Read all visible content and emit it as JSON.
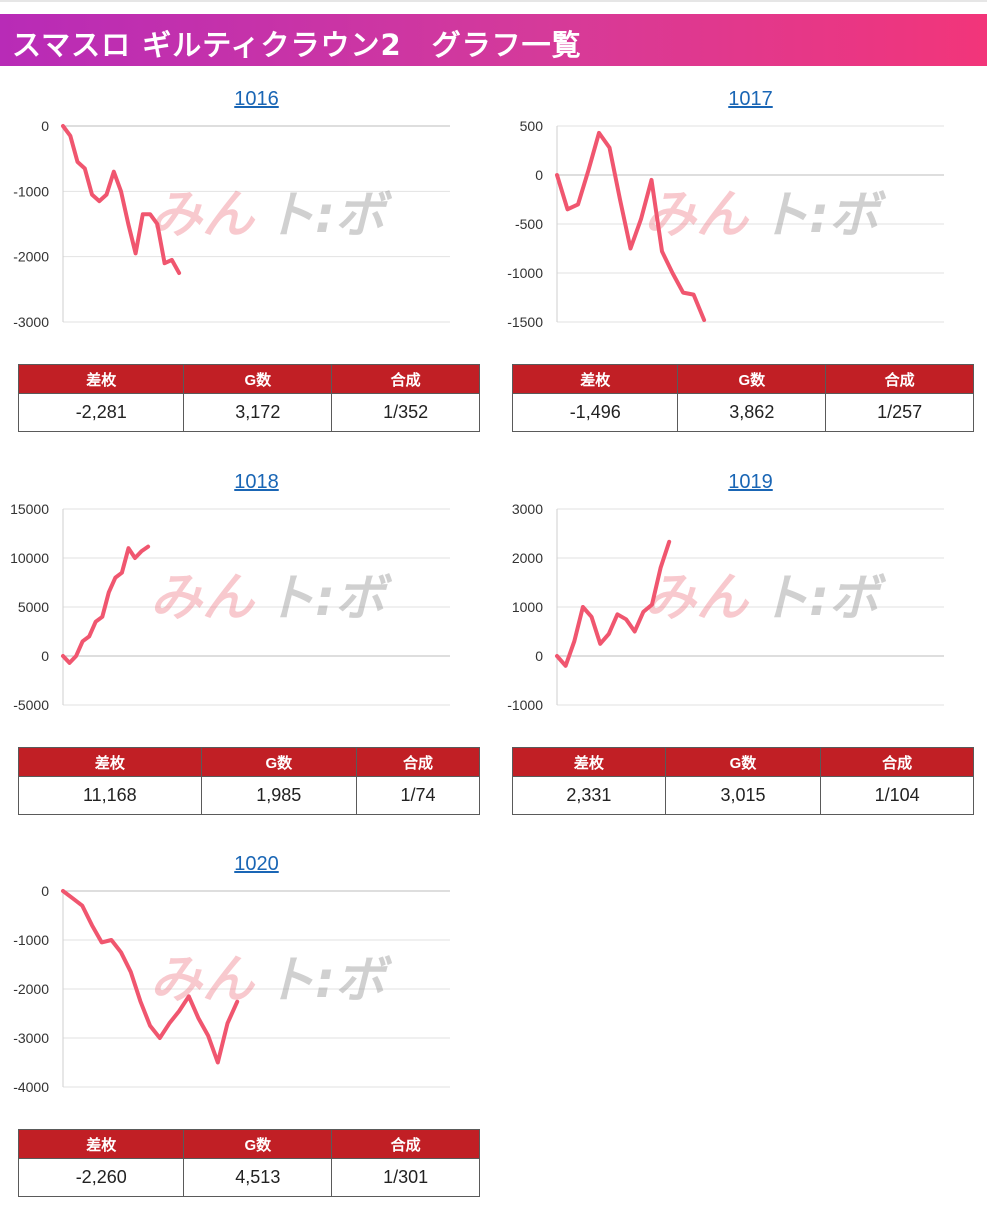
{
  "header": {
    "title": "スマスロ ギルティクラウン2　グラフ一覧"
  },
  "watermark": {
    "text_kana": "みん",
    "text_b": "ト:ボ"
  },
  "colors": {
    "line": "#f0566f",
    "header_bar": "#c11f25",
    "link": "#1a66b5"
  },
  "machines": [
    {
      "id": "1016",
      "stats": {
        "diff": "-2,281",
        "games": "3,172",
        "ratio": "1/352"
      }
    },
    {
      "id": "1017",
      "stats": {
        "diff": "-1,496",
        "games": "3,862",
        "ratio": "1/257"
      }
    },
    {
      "id": "1018",
      "stats": {
        "diff": "11,168",
        "games": "1,985",
        "ratio": "1/74"
      }
    },
    {
      "id": "1019",
      "stats": {
        "diff": "2,331",
        "games": "3,015",
        "ratio": "1/104"
      }
    },
    {
      "id": "1020",
      "stats": {
        "diff": "-2,260",
        "games": "4,513",
        "ratio": "1/301"
      }
    }
  ],
  "stat_headers": {
    "diff": "差枚",
    "games": "G数",
    "ratio": "合成"
  },
  "chart_data": [
    {
      "type": "line",
      "title": "1016",
      "ylim": [
        -3000,
        0
      ],
      "yticks": [
        0,
        -1000,
        -2000,
        -3000
      ],
      "yticklabels": [
        "0",
        "-1000",
        "-2000",
        "-3000"
      ],
      "grid": true,
      "xlabel": "",
      "ylabel": "",
      "y": [
        0,
        -150,
        -550,
        -650,
        -1050,
        -1150,
        -1050,
        -700,
        -1000,
        -1500,
        -1950,
        -1350,
        -1350,
        -1500,
        -2100,
        -2050,
        -2250
      ]
    },
    {
      "type": "line",
      "title": "1017",
      "ylim": [
        -1500,
        500
      ],
      "yticks": [
        500,
        0,
        -500,
        -1000,
        -1500
      ],
      "yticklabels": [
        "500",
        "0",
        "-500",
        "-1000",
        "-1500"
      ],
      "grid": true,
      "xlabel": "",
      "ylabel": "",
      "y": [
        0,
        -350,
        -300,
        50,
        430,
        280,
        -250,
        -750,
        -450,
        -50,
        -780,
        -1000,
        -1200,
        -1220,
        -1480
      ]
    },
    {
      "type": "line",
      "title": "1018",
      "ylim": [
        -5000,
        15000
      ],
      "yticks": [
        15000,
        10000,
        5000,
        0,
        -5000
      ],
      "yticklabels": [
        "15000",
        "10000",
        "5000",
        "0",
        "-5000"
      ],
      "grid": true,
      "xlabel": "",
      "ylabel": "",
      "y": [
        0,
        -700,
        0,
        1500,
        2000,
        3500,
        4000,
        6500,
        8000,
        8500,
        11000,
        10000,
        10700,
        11168
      ]
    },
    {
      "type": "line",
      "title": "1019",
      "ylim": [
        -1000,
        3000
      ],
      "yticks": [
        3000,
        2000,
        1000,
        0,
        -1000
      ],
      "yticklabels": [
        "3000",
        "2000",
        "1000",
        "0",
        "-1000"
      ],
      "grid": true,
      "xlabel": "",
      "ylabel": "",
      "y": [
        0,
        -200,
        300,
        1000,
        800,
        250,
        450,
        850,
        750,
        500,
        900,
        1050,
        1800,
        2331
      ]
    },
    {
      "type": "line",
      "title": "1020",
      "ylim": [
        -4000,
        0
      ],
      "yticks": [
        0,
        -1000,
        -2000,
        -3000,
        -4000
      ],
      "yticklabels": [
        "0",
        "-1000",
        "-2000",
        "-3000",
        "-4000"
      ],
      "grid": true,
      "xlabel": "",
      "ylabel": "",
      "y": [
        0,
        -150,
        -300,
        -700,
        -1050,
        -1000,
        -1250,
        -1650,
        -2250,
        -2750,
        -3000,
        -2700,
        -2450,
        -2150,
        -2600,
        -2950,
        -3500,
        -2700,
        -2260
      ]
    }
  ]
}
